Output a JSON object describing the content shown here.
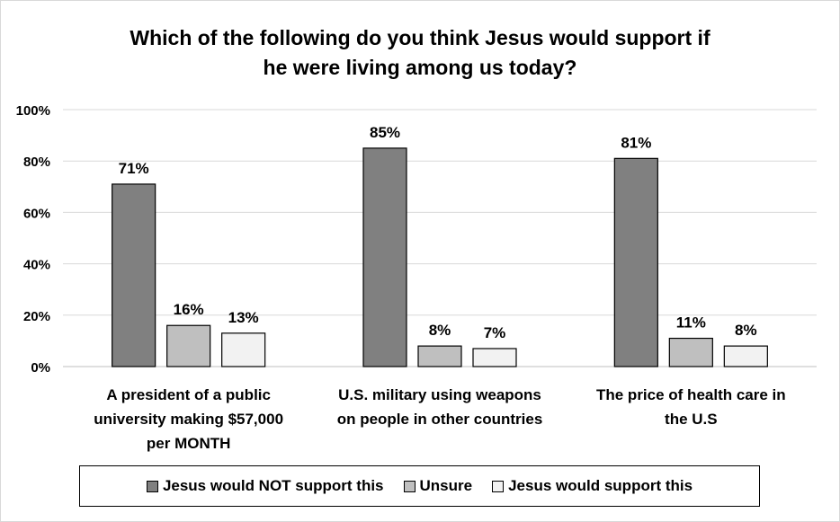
{
  "chart_data": {
    "type": "bar",
    "title_lines": [
      "Which of the following do you think Jesus would support if",
      "he were living among us today?"
    ],
    "categories": [
      [
        "A president of a public",
        "university making $57,000",
        "per MONTH"
      ],
      [
        "U.S. military using weapons",
        "on people in other countries"
      ],
      [
        "The price of health care in",
        "the U.S"
      ]
    ],
    "series": [
      {
        "name": "Jesus would NOT support this",
        "values": [
          71,
          85,
          81
        ],
        "labels": [
          "71%",
          "85%",
          "81%"
        ],
        "color": "#808080"
      },
      {
        "name": "Unsure",
        "values": [
          16,
          8,
          11
        ],
        "labels": [
          "16%",
          "8%",
          "11%"
        ],
        "color": "#bfbfbf"
      },
      {
        "name": "Jesus would support this",
        "values": [
          13,
          7,
          8
        ],
        "labels": [
          "13%",
          "7%",
          "8%"
        ],
        "color": "#f2f2f2"
      }
    ],
    "yticks": [
      0,
      20,
      40,
      60,
      80,
      100
    ],
    "ytick_labels": [
      "0%",
      "20%",
      "40%",
      "60%",
      "80%",
      "100%"
    ],
    "ylim": [
      0,
      100
    ],
    "grid": true,
    "legend_position": "bottom"
  }
}
